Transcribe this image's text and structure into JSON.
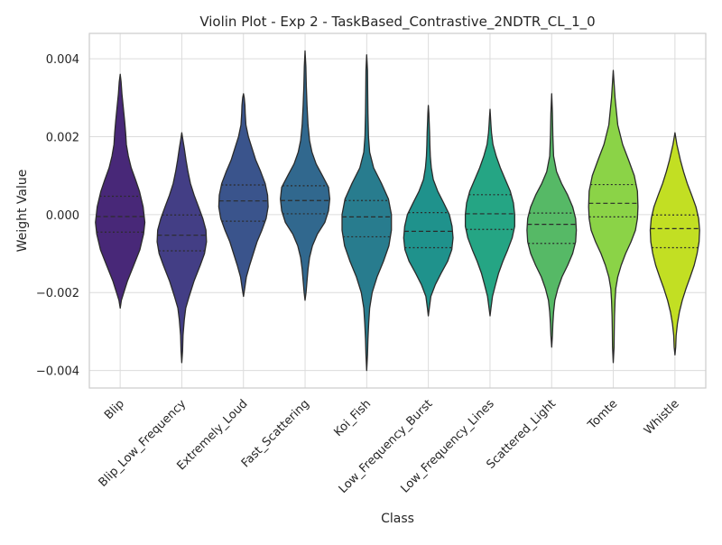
{
  "chart_data": {
    "type": "violin",
    "title": "Violin Plot - Exp 2 - TaskBased_Contrastive_2NDTR_CL_1_0",
    "xlabel": "Class",
    "ylabel": "Weight Value",
    "ylim": [
      -0.00445,
      0.00465
    ],
    "y_ticks": [
      {
        "value": 0.004,
        "label": "0.004"
      },
      {
        "value": 0.002,
        "label": "0.002"
      },
      {
        "value": 0.0,
        "label": "0.000"
      },
      {
        "value": -0.002,
        "label": "−0.002"
      },
      {
        "value": -0.004,
        "label": "−0.004"
      }
    ],
    "grid": true,
    "inner": "quartile",
    "categories": [
      "Blip",
      "Blip_Low_Frequency",
      "Extremely_Loud",
      "Fast_Scattering",
      "Koi_Fish",
      "Low_Frequency_Burst",
      "Low_Frequency_Lines",
      "Scattered_Light",
      "Tomte",
      "Whistle"
    ],
    "colors": [
      "#482878",
      "#433e85",
      "#3a548c",
      "#31688e",
      "#287c8e",
      "#1f928c",
      "#25a584",
      "#56b966",
      "#8bd347",
      "#c2df23"
    ],
    "violins": [
      {
        "category": "Blip",
        "min": -0.0024,
        "max": 0.0036,
        "q1": -0.00045,
        "median": -5e-05,
        "q3": 0.00047,
        "density": [
          [
            -0.0024,
            0
          ],
          [
            -0.0022,
            0.05
          ],
          [
            -0.002,
            0.15
          ],
          [
            -0.0017,
            0.3
          ],
          [
            -0.0013,
            0.55
          ],
          [
            -0.0009,
            0.8
          ],
          [
            -0.0005,
            0.95
          ],
          [
            -0.0002,
            1.0
          ],
          [
            0.0002,
            0.93
          ],
          [
            0.0006,
            0.78
          ],
          [
            0.0009,
            0.62
          ],
          [
            0.0012,
            0.45
          ],
          [
            0.0015,
            0.33
          ],
          [
            0.0018,
            0.25
          ],
          [
            0.0021,
            0.22
          ],
          [
            0.0024,
            0.18
          ],
          [
            0.0028,
            0.12
          ],
          [
            0.0031,
            0.07
          ],
          [
            0.0034,
            0.04
          ],
          [
            0.0036,
            0
          ]
        ]
      },
      {
        "category": "Blip_Low_Frequency",
        "min": -0.0038,
        "max": 0.0021,
        "q1": -0.00093,
        "median": -0.00053,
        "q3": -1e-05,
        "density": [
          [
            -0.0038,
            0
          ],
          [
            -0.0035,
            0.03
          ],
          [
            -0.0031,
            0.05
          ],
          [
            -0.0027,
            0.1
          ],
          [
            -0.0024,
            0.16
          ],
          [
            -0.0021,
            0.3
          ],
          [
            -0.0017,
            0.5
          ],
          [
            -0.0013,
            0.75
          ],
          [
            -0.001,
            0.92
          ],
          [
            -0.0007,
            1.0
          ],
          [
            -0.0004,
            0.98
          ],
          [
            -0.0001,
            0.85
          ],
          [
            0.0002,
            0.68
          ],
          [
            0.0005,
            0.5
          ],
          [
            0.0008,
            0.35
          ],
          [
            0.0011,
            0.25
          ],
          [
            0.0014,
            0.17
          ],
          [
            0.0017,
            0.1
          ],
          [
            0.0019,
            0.05
          ],
          [
            0.0021,
            0
          ]
        ]
      },
      {
        "category": "Extremely_Loud",
        "min": -0.0021,
        "max": 0.0031,
        "q1": -0.00017,
        "median": 0.00035,
        "q3": 0.00076,
        "density": [
          [
            -0.0021,
            0
          ],
          [
            -0.0019,
            0.05
          ],
          [
            -0.0016,
            0.12
          ],
          [
            -0.0013,
            0.25
          ],
          [
            -0.001,
            0.4
          ],
          [
            -0.0007,
            0.55
          ],
          [
            -0.0004,
            0.75
          ],
          [
            -0.0001,
            0.92
          ],
          [
            0.0002,
            1.0
          ],
          [
            0.0005,
            0.98
          ],
          [
            0.0008,
            0.88
          ],
          [
            0.0011,
            0.7
          ],
          [
            0.0014,
            0.5
          ],
          [
            0.0017,
            0.35
          ],
          [
            0.002,
            0.2
          ],
          [
            0.0023,
            0.1
          ],
          [
            0.0026,
            0.07
          ],
          [
            0.0028,
            0.06
          ],
          [
            0.003,
            0.03
          ],
          [
            0.0031,
            0
          ]
        ]
      },
      {
        "category": "Fast_Scattering",
        "min": -0.0022,
        "max": 0.0042,
        "q1": 2e-05,
        "median": 0.00036,
        "q3": 0.00074,
        "density": [
          [
            -0.0022,
            0
          ],
          [
            -0.002,
            0.04
          ],
          [
            -0.0017,
            0.08
          ],
          [
            -0.0014,
            0.12
          ],
          [
            -0.0011,
            0.18
          ],
          [
            -0.0008,
            0.3
          ],
          [
            -0.0005,
            0.5
          ],
          [
            -0.0002,
            0.8
          ],
          [
            0.0001,
            0.95
          ],
          [
            0.0004,
            1.0
          ],
          [
            0.0007,
            0.95
          ],
          [
            0.001,
            0.7
          ],
          [
            0.0013,
            0.45
          ],
          [
            0.0016,
            0.28
          ],
          [
            0.0019,
            0.18
          ],
          [
            0.0023,
            0.12
          ],
          [
            0.0028,
            0.08
          ],
          [
            0.0033,
            0.05
          ],
          [
            0.0038,
            0.03
          ],
          [
            0.0042,
            0
          ]
        ]
      },
      {
        "category": "Koi_Fish",
        "min": -0.004,
        "max": 0.0041,
        "q1": -0.00057,
        "median": -6e-05,
        "q3": 0.00036,
        "density": [
          [
            -0.004,
            0
          ],
          [
            -0.0036,
            0.03
          ],
          [
            -0.0032,
            0.05
          ],
          [
            -0.0028,
            0.08
          ],
          [
            -0.0024,
            0.12
          ],
          [
            -0.002,
            0.22
          ],
          [
            -0.0016,
            0.42
          ],
          [
            -0.0012,
            0.68
          ],
          [
            -0.0008,
            0.9
          ],
          [
            -0.0004,
            1.0
          ],
          [
            0.0,
            1.0
          ],
          [
            0.0004,
            0.88
          ],
          [
            0.0008,
            0.6
          ],
          [
            0.0012,
            0.28
          ],
          [
            0.0016,
            0.12
          ],
          [
            0.002,
            0.07
          ],
          [
            0.0026,
            0.05
          ],
          [
            0.0032,
            0.04
          ],
          [
            0.0037,
            0.03
          ],
          [
            0.0041,
            0
          ]
        ]
      },
      {
        "category": "Low_Frequency_Burst",
        "min": -0.0026,
        "max": 0.0028,
        "q1": -0.00085,
        "median": -0.00043,
        "q3": 5e-05,
        "density": [
          [
            -0.0026,
            0
          ],
          [
            -0.0024,
            0.04
          ],
          [
            -0.0021,
            0.1
          ],
          [
            -0.0018,
            0.28
          ],
          [
            -0.0015,
            0.52
          ],
          [
            -0.0012,
            0.78
          ],
          [
            -0.0009,
            0.95
          ],
          [
            -0.0006,
            1.0
          ],
          [
            -0.0003,
            0.96
          ],
          [
            0.0,
            0.85
          ],
          [
            0.0003,
            0.62
          ],
          [
            0.0006,
            0.38
          ],
          [
            0.0009,
            0.2
          ],
          [
            0.0012,
            0.12
          ],
          [
            0.0015,
            0.08
          ],
          [
            0.0018,
            0.06
          ],
          [
            0.0021,
            0.05
          ],
          [
            0.0024,
            0.03
          ],
          [
            0.0026,
            0.02
          ],
          [
            0.0028,
            0
          ]
        ]
      },
      {
        "category": "Low_Frequency_Lines",
        "min": -0.0026,
        "max": 0.0027,
        "q1": -0.00038,
        "median": 2e-05,
        "q3": 0.00051,
        "density": [
          [
            -0.0026,
            0
          ],
          [
            -0.0024,
            0.04
          ],
          [
            -0.0021,
            0.1
          ],
          [
            -0.0018,
            0.22
          ],
          [
            -0.0015,
            0.35
          ],
          [
            -0.0012,
            0.52
          ],
          [
            -0.0009,
            0.72
          ],
          [
            -0.0006,
            0.9
          ],
          [
            -0.0003,
            1.0
          ],
          [
            0.0,
            1.0
          ],
          [
            0.0003,
            0.95
          ],
          [
            0.0006,
            0.82
          ],
          [
            0.0009,
            0.62
          ],
          [
            0.0012,
            0.42
          ],
          [
            0.0015,
            0.25
          ],
          [
            0.0018,
            0.12
          ],
          [
            0.0021,
            0.06
          ],
          [
            0.0023,
            0.04
          ],
          [
            0.0025,
            0.02
          ],
          [
            0.0027,
            0
          ]
        ]
      },
      {
        "category": "Scattered_Light",
        "min": -0.0034,
        "max": 0.0031,
        "q1": -0.00074,
        "median": -0.00025,
        "q3": 4e-05,
        "density": [
          [
            -0.0034,
            0
          ],
          [
            -0.0031,
            0.03
          ],
          [
            -0.0028,
            0.05
          ],
          [
            -0.0025,
            0.08
          ],
          [
            -0.0022,
            0.13
          ],
          [
            -0.0019,
            0.25
          ],
          [
            -0.0016,
            0.42
          ],
          [
            -0.0013,
            0.65
          ],
          [
            -0.001,
            0.85
          ],
          [
            -0.0007,
            0.97
          ],
          [
            -0.0004,
            1.0
          ],
          [
            -0.0001,
            0.97
          ],
          [
            0.0002,
            0.85
          ],
          [
            0.0005,
            0.65
          ],
          [
            0.0008,
            0.4
          ],
          [
            0.0011,
            0.2
          ],
          [
            0.0015,
            0.08
          ],
          [
            0.002,
            0.05
          ],
          [
            0.0026,
            0.03
          ],
          [
            0.0031,
            0
          ]
        ]
      },
      {
        "category": "Tomte",
        "min": -0.0038,
        "max": 0.0037,
        "q1": -6e-05,
        "median": 0.00029,
        "q3": 0.00077,
        "density": [
          [
            -0.0038,
            0
          ],
          [
            -0.0034,
            0.03
          ],
          [
            -0.003,
            0.04
          ],
          [
            -0.0026,
            0.05
          ],
          [
            -0.0022,
            0.07
          ],
          [
            -0.0019,
            0.1
          ],
          [
            -0.0016,
            0.18
          ],
          [
            -0.0013,
            0.32
          ],
          [
            -0.001,
            0.5
          ],
          [
            -0.0007,
            0.72
          ],
          [
            -0.0004,
            0.9
          ],
          [
            -0.0001,
            0.98
          ],
          [
            0.0002,
            1.0
          ],
          [
            0.0006,
            0.98
          ],
          [
            0.001,
            0.85
          ],
          [
            0.0014,
            0.62
          ],
          [
            0.0018,
            0.38
          ],
          [
            0.0023,
            0.18
          ],
          [
            0.003,
            0.07
          ],
          [
            0.0037,
            0
          ]
        ]
      },
      {
        "category": "Whistle",
        "min": -0.0036,
        "max": 0.0021,
        "q1": -0.00085,
        "median": -0.00036,
        "q3": -1e-05,
        "density": [
          [
            -0.0036,
            0
          ],
          [
            -0.0034,
            0.03
          ],
          [
            -0.0031,
            0.05
          ],
          [
            -0.0028,
            0.1
          ],
          [
            -0.0025,
            0.18
          ],
          [
            -0.0022,
            0.3
          ],
          [
            -0.0019,
            0.45
          ],
          [
            -0.0016,
            0.62
          ],
          [
            -0.0013,
            0.78
          ],
          [
            -0.001,
            0.9
          ],
          [
            -0.0007,
            0.98
          ],
          [
            -0.0004,
            1.0
          ],
          [
            -0.0001,
            0.96
          ],
          [
            0.0002,
            0.85
          ],
          [
            0.0005,
            0.68
          ],
          [
            0.0008,
            0.5
          ],
          [
            0.0011,
            0.35
          ],
          [
            0.0014,
            0.22
          ],
          [
            0.0018,
            0.08
          ],
          [
            0.0021,
            0
          ]
        ]
      }
    ]
  }
}
